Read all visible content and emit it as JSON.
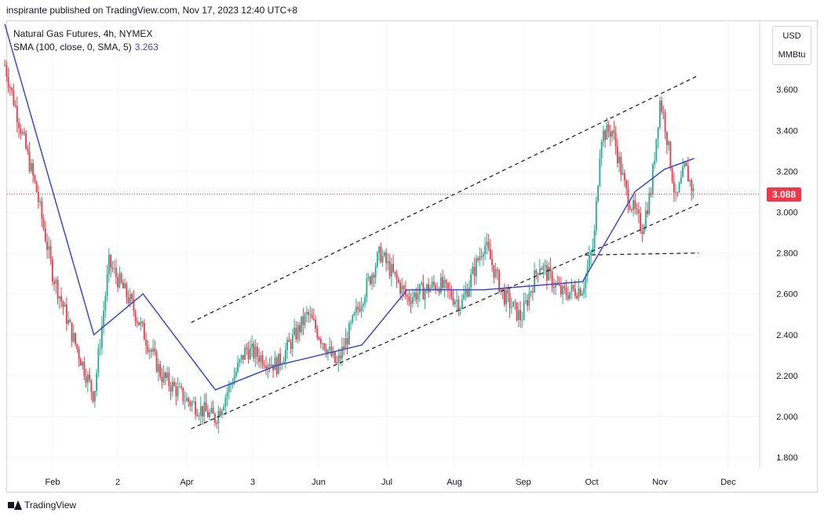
{
  "header": {
    "published": "inspirante published on TradingView.com, Nov 17, 2023 12:40 UTC+8"
  },
  "legend": {
    "symbol": "Natural Gas Futures, 4h, NYMEX",
    "indicator": "SMA (100, close, 0, SMA, 5)",
    "indicator_value": "3.263"
  },
  "units": {
    "currency": "USD",
    "unit": "MMBtu"
  },
  "last_price": "3.088",
  "footer": {
    "brand": "TradingView"
  },
  "colors": {
    "up": "#22ab94",
    "down": "#f23645",
    "sma": "#3f48cc",
    "grid": "#f0f3fa",
    "price_line": "#f23645"
  },
  "chart_data": {
    "type": "candlestick",
    "title": "Natural Gas Futures, 4h, NYMEX",
    "ylim": [
      1.72,
      3.82
    ],
    "y_ticks": [
      "1.800",
      "2.000",
      "2.200",
      "2.400",
      "2.600",
      "2.800",
      "3.000",
      "3.200",
      "3.400",
      "3.600"
    ],
    "x_tick_labels": [
      "Feb",
      "2",
      "Apr",
      "3",
      "Jun",
      "Jul",
      "Aug",
      "Sep",
      "Oct",
      "Nov",
      "Dec"
    ],
    "date_range": [
      "Jan 2023",
      "Dec 2023"
    ],
    "price_path": [
      {
        "date": "Jan 10",
        "price": 3.72
      },
      {
        "date": "Jan 24",
        "price": 3.1
      },
      {
        "date": "Jan 31",
        "price": 2.7
      },
      {
        "date": "Feb 10",
        "price": 2.4
      },
      {
        "date": "Feb 20",
        "price": 2.1
      },
      {
        "date": "Feb 27",
        "price": 2.75
      },
      {
        "date": "Mar 7",
        "price": 2.55
      },
      {
        "date": "Mar 20",
        "price": 2.2
      },
      {
        "date": "Mar 31",
        "price": 2.08
      },
      {
        "date": "Apr 14",
        "price": 1.99
      },
      {
        "date": "Apr 28",
        "price": 2.33
      },
      {
        "date": "May 12",
        "price": 2.25
      },
      {
        "date": "May 26",
        "price": 2.5
      },
      {
        "date": "Jun 9",
        "price": 2.25
      },
      {
        "date": "Jun 20",
        "price": 2.58
      },
      {
        "date": "Jun 28",
        "price": 2.8
      },
      {
        "date": "Jul 10",
        "price": 2.58
      },
      {
        "date": "Jul 24",
        "price": 2.65
      },
      {
        "date": "Aug 4",
        "price": 2.55
      },
      {
        "date": "Aug 14",
        "price": 2.85
      },
      {
        "date": "Aug 22",
        "price": 2.6
      },
      {
        "date": "Aug 30",
        "price": 2.48
      },
      {
        "date": "Sep 8",
        "price": 2.75
      },
      {
        "date": "Sep 18",
        "price": 2.6
      },
      {
        "date": "Sep 27",
        "price": 2.63
      },
      {
        "date": "Oct 2",
        "price": 2.85
      },
      {
        "date": "Oct 5",
        "price": 3.38
      },
      {
        "date": "Oct 10",
        "price": 3.4
      },
      {
        "date": "Oct 16",
        "price": 3.1
      },
      {
        "date": "Oct 23",
        "price": 2.92
      },
      {
        "date": "Oct 27",
        "price": 3.1
      },
      {
        "date": "Oct 31",
        "price": 3.55
      },
      {
        "date": "Nov 3",
        "price": 3.45
      },
      {
        "date": "Nov 8",
        "price": 3.05
      },
      {
        "date": "Nov 12",
        "price": 3.22
      },
      {
        "date": "Nov 16",
        "price": 3.088
      }
    ],
    "sma_path": [
      {
        "date": "Jan 10",
        "value": 3.92
      },
      {
        "date": "Feb 20",
        "value": 2.4
      },
      {
        "date": "Mar 12",
        "value": 2.6
      },
      {
        "date": "Apr 14",
        "value": 2.13
      },
      {
        "date": "May 12",
        "value": 2.25
      },
      {
        "date": "Jun 20",
        "value": 2.35
      },
      {
        "date": "Jul 10",
        "value": 2.62
      },
      {
        "date": "Aug 14",
        "value": 2.62
      },
      {
        "date": "Sep 27",
        "value": 2.66
      },
      {
        "date": "Oct 20",
        "value": 3.1
      },
      {
        "date": "Nov 3",
        "value": 3.21
      },
      {
        "date": "Nov 16",
        "value": 3.263
      }
    ],
    "trendlines": [
      {
        "name": "upper channel",
        "from": {
          "date": "Apr 3",
          "price": 2.46
        },
        "to": {
          "date": "Nov 18",
          "price": 3.67
        }
      },
      {
        "name": "upper support",
        "from": {
          "date": "Apr 3",
          "price": 1.94
        },
        "to": {
          "date": "Nov 18",
          "price": 3.04
        }
      },
      {
        "name": "lower support",
        "from": {
          "date": "Sep 28",
          "price": 2.79
        },
        "to": {
          "date": "Nov 18",
          "price": 2.8
        }
      }
    ]
  }
}
